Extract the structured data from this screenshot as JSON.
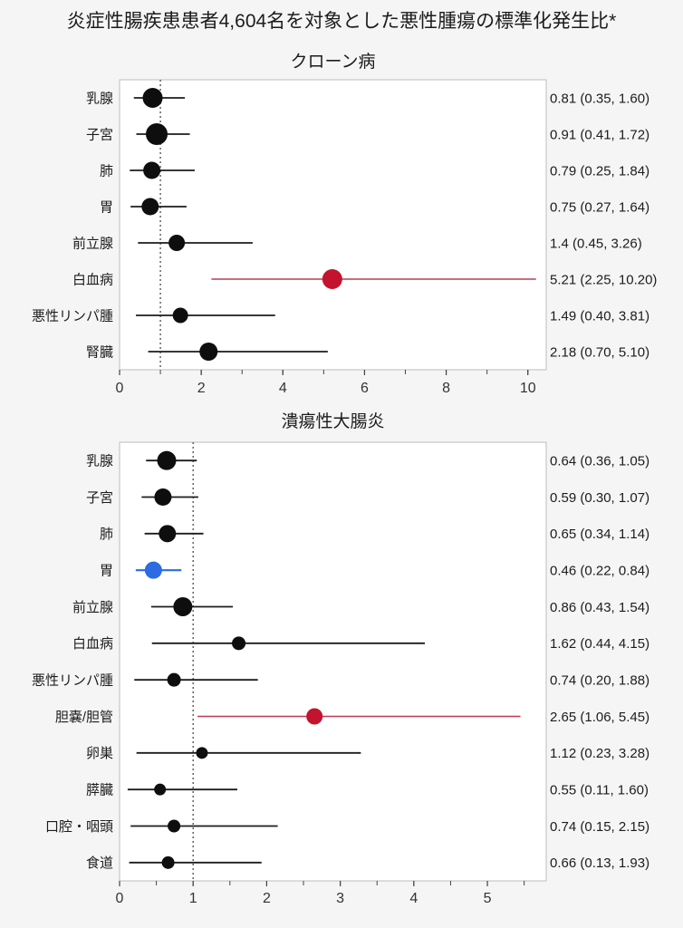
{
  "page": {
    "title": "炎症性腸疾患患者4,604名を対象とした悪性腫瘍の標準化発生比*",
    "background": "#f5f5f5"
  },
  "palette": {
    "plot_bg": "#ffffff",
    "plot_border": "#bdbdbd",
    "refline": "#4a4a4a",
    "axis_tick": "#444444",
    "tick_label": "#333333",
    "text": "#1c1c1c",
    "black_dot": "#0e0e0e",
    "black_line": "#1c1c1c",
    "red_dot": "#c4132e",
    "red_line": "#bd3b52",
    "blue_dot": "#2b6ce4",
    "blue_line": "#2b6ce4"
  },
  "chart_data": [
    {
      "type": "scatter",
      "subtype": "forest-dot-ci",
      "title": "クローン病",
      "refline_x": 1,
      "xlim": [
        0,
        10.45
      ],
      "xticks_major": [
        0,
        2,
        4,
        6,
        8,
        10
      ],
      "xtick_minor_step": 1,
      "grid": false,
      "rows": [
        {
          "label": "乳腺",
          "est": 0.81,
          "lo": 0.35,
          "hi": 1.6,
          "text": "0.81 (0.35, 1.60)",
          "size": 11,
          "color": "black"
        },
        {
          "label": "子宮",
          "est": 0.91,
          "lo": 0.41,
          "hi": 1.72,
          "text": "0.91 (0.41, 1.72)",
          "size": 12,
          "color": "black"
        },
        {
          "label": "肺",
          "est": 0.79,
          "lo": 0.25,
          "hi": 1.84,
          "text": "0.79 (0.25, 1.84)",
          "size": 9.5,
          "color": "black"
        },
        {
          "label": "胃",
          "est": 0.75,
          "lo": 0.27,
          "hi": 1.64,
          "text": "0.75 (0.27, 1.64)",
          "size": 9.5,
          "color": "black"
        },
        {
          "label": "前立腺",
          "est": 1.4,
          "lo": 0.45,
          "hi": 3.26,
          "text": "1.4 (0.45, 3.26)",
          "size": 9,
          "color": "black"
        },
        {
          "label": "白血病",
          "est": 5.21,
          "lo": 2.25,
          "hi": 10.2,
          "text": "5.21 (2.25, 10.20)",
          "size": 11,
          "color": "red"
        },
        {
          "label": "悪性リンパ腫",
          "est": 1.49,
          "lo": 0.4,
          "hi": 3.81,
          "text": "1.49 (0.40, 3.81)",
          "size": 8.5,
          "color": "black"
        },
        {
          "label": "腎臓",
          "est": 2.18,
          "lo": 0.7,
          "hi": 5.1,
          "text": "2.18 (0.70, 5.10)",
          "size": 10,
          "color": "black"
        }
      ]
    },
    {
      "type": "scatter",
      "subtype": "forest-dot-ci",
      "title": "潰瘍性大腸炎",
      "refline_x": 1,
      "xlim": [
        0,
        5.8
      ],
      "xticks_major": [
        0,
        1,
        2,
        3,
        4,
        5
      ],
      "xtick_minor_step": 0.5,
      "grid": false,
      "rows": [
        {
          "label": "乳腺",
          "est": 0.64,
          "lo": 0.36,
          "hi": 1.05,
          "text": "0.64 (0.36, 1.05)",
          "size": 10.5,
          "color": "black"
        },
        {
          "label": "子宮",
          "est": 0.59,
          "lo": 0.3,
          "hi": 1.07,
          "text": "0.59 (0.30, 1.07)",
          "size": 9.5,
          "color": "black"
        },
        {
          "label": "肺",
          "est": 0.65,
          "lo": 0.34,
          "hi": 1.14,
          "text": "0.65 (0.34, 1.14)",
          "size": 9.5,
          "color": "black"
        },
        {
          "label": "胃",
          "est": 0.46,
          "lo": 0.22,
          "hi": 0.84,
          "text": "0.46 (0.22, 0.84)",
          "size": 9.5,
          "color": "blue"
        },
        {
          "label": "前立腺",
          "est": 0.86,
          "lo": 0.43,
          "hi": 1.54,
          "text": "0.86 (0.43, 1.54)",
          "size": 10.5,
          "color": "black"
        },
        {
          "label": "白血病",
          "est": 1.62,
          "lo": 0.44,
          "hi": 4.15,
          "text": "1.62 (0.44, 4.15)",
          "size": 7.5,
          "color": "black"
        },
        {
          "label": "悪性リンパ腫",
          "est": 0.74,
          "lo": 0.2,
          "hi": 1.88,
          "text": "0.74 (0.20, 1.88)",
          "size": 7.5,
          "color": "black"
        },
        {
          "label": "胆嚢/胆管",
          "est": 2.65,
          "lo": 1.06,
          "hi": 5.45,
          "text": "2.65 (1.06, 5.45)",
          "size": 9,
          "color": "red"
        },
        {
          "label": "卵巣",
          "est": 1.12,
          "lo": 0.23,
          "hi": 3.28,
          "text": "1.12 (0.23, 3.28)",
          "size": 6.5,
          "color": "black"
        },
        {
          "label": "膵臓",
          "est": 0.55,
          "lo": 0.11,
          "hi": 1.6,
          "text": "0.55 (0.11, 1.60)",
          "size": 6.5,
          "color": "black"
        },
        {
          "label": "口腔・咽頭",
          "est": 0.74,
          "lo": 0.15,
          "hi": 2.15,
          "text": "0.74 (0.15, 2.15)",
          "size": 7,
          "color": "black"
        },
        {
          "label": "食道",
          "est": 0.66,
          "lo": 0.13,
          "hi": 1.93,
          "text": "0.66 (0.13, 1.93)",
          "size": 7,
          "color": "black"
        }
      ]
    }
  ]
}
